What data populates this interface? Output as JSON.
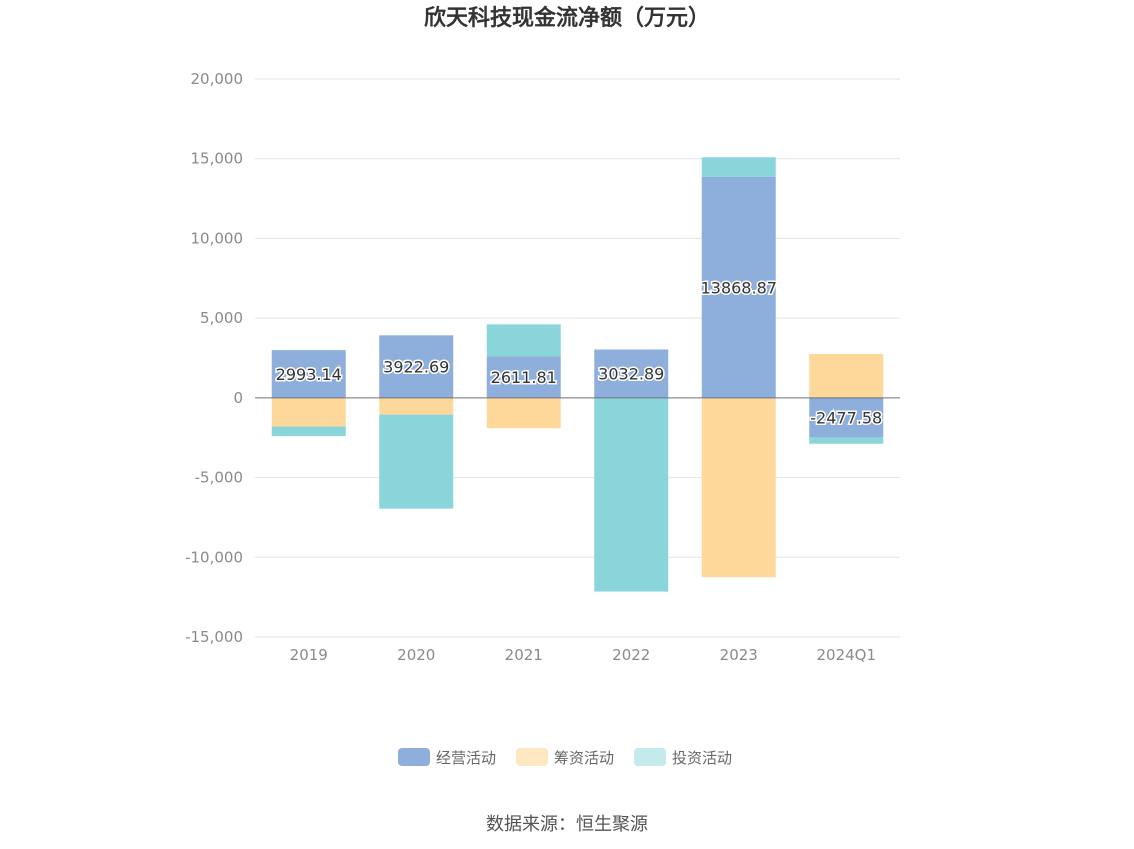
{
  "chart_data": {
    "type": "bar",
    "stacked": true,
    "title": "欣天科技现金流净额（万元）",
    "categories": [
      "2019",
      "2020",
      "2021",
      "2022",
      "2023",
      "2024Q1"
    ],
    "series": [
      {
        "name": "经营活动",
        "color": "#8eaedb",
        "values": [
          2993.14,
          3922.69,
          2611.81,
          3032.89,
          13868.87,
          -2477.58
        ],
        "labels": [
          "2993.14",
          "3922.69",
          "2611.81",
          "3032.89",
          "13868.87",
          "-2477.58"
        ]
      },
      {
        "name": "筹资活动",
        "color": "#fdd89a",
        "values": [
          -1800,
          -1050,
          -1900,
          0,
          -11250,
          2750
        ]
      },
      {
        "name": "投资活动",
        "color": "#89d5d9",
        "values": [
          -600,
          -5900,
          2000,
          -12150,
          1220,
          -400
        ]
      }
    ],
    "ylim": [
      -15000,
      20000
    ],
    "yticks": [
      20000,
      15000,
      10000,
      5000,
      0,
      -5000,
      -10000,
      -15000
    ],
    "ytick_labels": [
      "20,000",
      "15,000",
      "10,000",
      "5,000",
      "0",
      "-5,000",
      "-10,000",
      "-15,000"
    ],
    "grid": true,
    "legend_position": "bottom"
  },
  "source_text": "数据来源：恒生聚源"
}
